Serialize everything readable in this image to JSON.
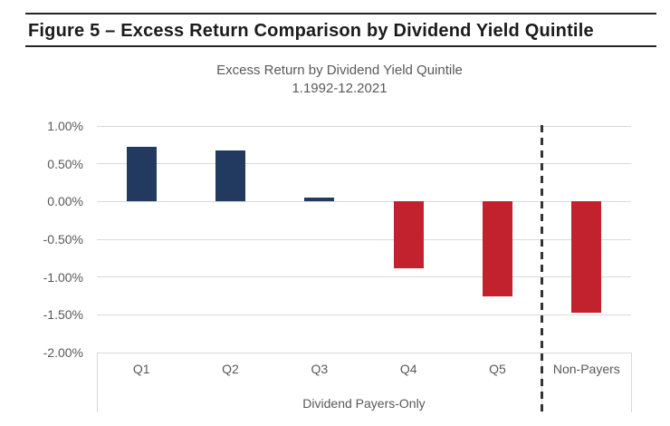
{
  "figure": {
    "title": "Figure 5 – Excess Return Comparison by Dividend Yield Quintile"
  },
  "chart_data": {
    "type": "bar",
    "title": "Excess Return by Dividend Yield Quintile",
    "subtitle": "1.1992-12.2021",
    "categories": [
      "Q1",
      "Q2",
      "Q3",
      "Q4",
      "Q5",
      "Non-Payers"
    ],
    "values": [
      0.73,
      0.68,
      0.05,
      -0.89,
      -1.26,
      -1.47
    ],
    "unit": "%",
    "group_label": "Dividend Payers-Only",
    "group_span_categories": [
      "Q1",
      "Q2",
      "Q3",
      "Q4",
      "Q5"
    ],
    "separator_between": [
      "Q5",
      "Non-Payers"
    ],
    "y_ticks": [
      "1.00%",
      "0.50%",
      "0.00%",
      "-0.50%",
      "-1.00%",
      "-1.50%",
      "-2.00%"
    ],
    "ylim": [
      -2.0,
      1.0
    ],
    "grid": true,
    "legend": "none",
    "colors": {
      "positive_bar": "#223a5f",
      "negative_bar": "#c2212e",
      "gridline": "#d9d9d9",
      "axis_text": "#595959",
      "separator_line": "#333333",
      "header_rule": "#262626"
    }
  }
}
